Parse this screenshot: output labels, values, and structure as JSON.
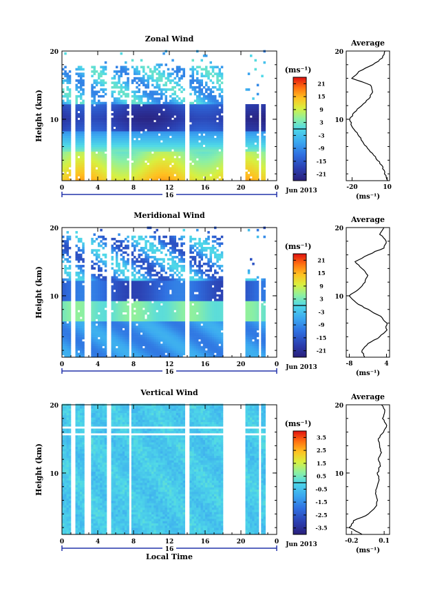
{
  "figure": {
    "date_label": "Jun 2013",
    "day_label": "16",
    "x_axis_title": "Local Time",
    "y_axis_title": "Height (km)",
    "colorbar_unit": "(ms⁻¹)",
    "avg_unit": "(ms⁻¹)",
    "avg_title": "Average"
  },
  "chart_data": [
    {
      "type": "heatmap",
      "title": "Zonal Wind",
      "xlabel": "",
      "ylabel": "Height (km)",
      "x_ticks": [
        "0",
        "4",
        "8",
        "12",
        "16",
        "20",
        "0"
      ],
      "y_ticks": [
        "20",
        "10"
      ],
      "xlim": [
        0,
        24
      ],
      "ylim": [
        1,
        20
      ],
      "colorbar": {
        "unit": "(ms⁻¹)",
        "ticks": [
          "21",
          "15",
          "9",
          "3",
          "-3",
          "-9",
          "-15",
          "-21"
        ],
        "range": [
          -24,
          24
        ]
      },
      "profile": {
        "title": "Average",
        "xlabel": "(ms⁻¹)",
        "x_ticks": [
          "-20",
          "10"
        ],
        "xlim": [
          -25,
          12
        ],
        "height": [
          1,
          2,
          3,
          4,
          5,
          6,
          7,
          8,
          9,
          10,
          11,
          12,
          13,
          14,
          15,
          16,
          17,
          18,
          19,
          20
        ],
        "values": [
          10,
          8,
          6,
          2,
          -3,
          -8,
          -12,
          -16,
          -20,
          -22,
          -18,
          -12,
          -6,
          -2,
          -4,
          -20,
          -14,
          -2,
          6,
          8
        ]
      }
    },
    {
      "type": "heatmap",
      "title": "Meridional Wind",
      "xlabel": "",
      "ylabel": "Height (km)",
      "x_ticks": [
        "0",
        "4",
        "8",
        "12",
        "16",
        "20",
        "0"
      ],
      "y_ticks": [
        "20",
        "10"
      ],
      "xlim": [
        0,
        24
      ],
      "ylim": [
        1,
        20
      ],
      "colorbar": {
        "unit": "(ms⁻¹)",
        "ticks": [
          "21",
          "15",
          "9",
          "3",
          "-3",
          "-9",
          "-15",
          "-21"
        ],
        "range": [
          -24,
          24
        ]
      },
      "profile": {
        "title": "Average",
        "xlabel": "(ms⁻¹)",
        "x_ticks": [
          "-8",
          "4"
        ],
        "xlim": [
          -9,
          5
        ],
        "height": [
          1,
          2,
          3,
          4,
          5,
          6,
          7,
          8,
          9,
          10,
          11,
          12,
          13,
          14,
          15,
          16,
          17,
          18,
          19,
          20
        ],
        "values": [
          -3,
          -4,
          -2,
          2,
          4,
          4,
          2,
          -2,
          -6,
          -8,
          -5,
          -3,
          -2,
          -4,
          -6,
          -2,
          3,
          4,
          2,
          3
        ]
      }
    },
    {
      "type": "heatmap",
      "title": "Vertical Wind",
      "xlabel": "Local Time",
      "ylabel": "Height (km)",
      "x_ticks": [
        "0",
        "4",
        "8",
        "12",
        "16",
        "20",
        "0"
      ],
      "y_ticks": [
        "20",
        "10"
      ],
      "xlim": [
        0,
        24
      ],
      "ylim": [
        1,
        20
      ],
      "colorbar": {
        "unit": "(ms⁻¹)",
        "ticks": [
          "3.5",
          "2.5",
          "1.5",
          "0.5",
          "-0.5",
          "-1.5",
          "-2.5",
          "-3.5"
        ],
        "range": [
          -4,
          4
        ]
      },
      "profile": {
        "title": "Average",
        "xlabel": "(ms⁻¹)",
        "x_ticks": [
          "-0.2",
          "0.1"
        ],
        "xlim": [
          -0.25,
          0.15
        ],
        "height": [
          1,
          2,
          3,
          4,
          5,
          6,
          7,
          8,
          9,
          10,
          11,
          12,
          13,
          14,
          15,
          16,
          17,
          18,
          19,
          20
        ],
        "values": [
          -0.1,
          -0.22,
          -0.18,
          -0.04,
          0.02,
          0.04,
          0.02,
          0.03,
          0.05,
          0.04,
          0.06,
          0.05,
          0.07,
          0.06,
          0.04,
          0.1,
          0.12,
          0.09,
          0.11,
          0.08
        ]
      }
    }
  ]
}
